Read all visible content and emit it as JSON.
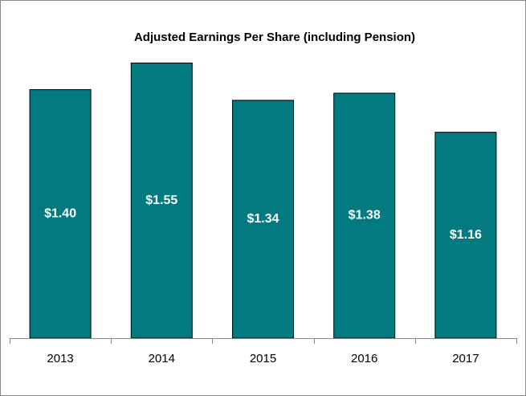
{
  "chart_data": {
    "type": "bar",
    "title": "Adjusted Earnings Per Share (including Pension)",
    "categories": [
      "2013",
      "2014",
      "2015",
      "2016",
      "2017"
    ],
    "values": [
      1.4,
      1.55,
      1.34,
      1.38,
      1.16
    ],
    "value_labels": [
      "$1.40",
      "$1.55",
      "$1.34",
      "$1.38",
      "$1.16"
    ],
    "color": "#037a7f"
  }
}
